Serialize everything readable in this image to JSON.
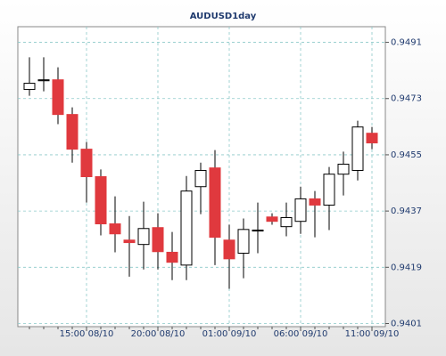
{
  "chart_data": {
    "type": "candlestick",
    "title": "AUDUSD1day",
    "categories": [
      null,
      null,
      null,
      null,
      "15:00 08/10",
      null,
      null,
      null,
      null,
      "20:00 08/10",
      null,
      null,
      null,
      null,
      "01:00 09/10",
      null,
      null,
      null,
      null,
      "06:00 09/10",
      null,
      null,
      null,
      null,
      "11:00 09/10"
    ],
    "open": [
      0.94759,
      0.94787,
      0.9479,
      0.94679,
      0.94568,
      0.9448,
      0.94329,
      0.94277,
      0.94263,
      0.94317,
      0.94238,
      0.94197,
      0.94448,
      0.94508,
      0.94277,
      0.94235,
      0.94306,
      0.94351,
      0.9432,
      0.94337,
      0.94409,
      0.94389,
      0.94488,
      0.945,
      0.94619
    ],
    "high": [
      0.94862,
      0.94862,
      0.9483,
      0.94702,
      0.94591,
      0.94503,
      0.94417,
      0.94354,
      0.944,
      0.94363,
      0.94303,
      0.94482,
      0.94525,
      0.94565,
      0.94326,
      0.94346,
      0.94397,
      0.94363,
      0.94397,
      0.94448,
      0.94434,
      0.94511,
      0.9456,
      0.94659,
      0.94639
    ],
    "low": [
      0.94739,
      0.94753,
      0.94648,
      0.94525,
      0.94397,
      0.94292,
      0.94238,
      0.9416,
      0.94183,
      0.94183,
      0.94149,
      0.94149,
      0.9436,
      0.94197,
      0.94121,
      0.94155,
      0.94235,
      0.94326,
      0.94289,
      0.94297,
      0.94286,
      0.94309,
      0.9442,
      0.94468,
      0.94568
    ],
    "close": [
      0.94779,
      0.9479,
      0.94679,
      0.94568,
      0.9448,
      0.94329,
      0.94297,
      0.94269,
      0.94314,
      0.9424,
      0.94206,
      0.94434,
      0.945,
      0.94286,
      0.94217,
      0.94311,
      0.94309,
      0.94337,
      0.94349,
      0.94409,
      0.94389,
      0.94488,
      0.9452,
      0.94639,
      0.94588
    ],
    "up_color": "#ffffff",
    "down_color": "#e0393e",
    "ylim": [
      0.94,
      0.9496
    ],
    "yticks": [
      0.9401,
      0.9419,
      0.9437,
      0.9455,
      0.9473,
      0.9491
    ],
    "grid": true
  }
}
